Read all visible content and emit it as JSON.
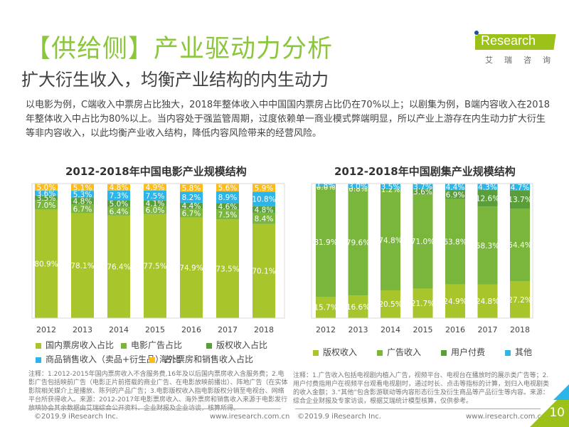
{
  "header": {
    "title": "【供给侧】产业驱动力分析",
    "subtitle": "扩大衍生收入，均衡产业结构的内生动力",
    "logo_text": "Research",
    "logo_cn": "艾瑞咨询"
  },
  "intro": "以电影为例，C端收入中票房占比独大，2018年整体收入中中国国内票房占比仍在70%以上；以剧集为例，B端内容收入在2018年整体收入中占比为80%以上。当内容处于强监管周期，过度依赖单一商业模式弊端明显，所以产业上游存在内生动力扩大衍生等非内容收入，以此均衡产业收入结构，降低内容风险带来的经营风险。",
  "colors": {
    "lime": "#a8c62c",
    "green": "#7ab53c",
    "darkgreen": "#5a9e3a",
    "blue": "#2bb5e8",
    "yellow": "#fbbc1c",
    "title_green": "#8cc63f"
  },
  "chart_data": [
    {
      "type": "bar",
      "stacked": true,
      "title": "2012-2018年中国电影产业规模结构",
      "categories": [
        "2012",
        "2013",
        "2014",
        "2015",
        "2016",
        "2017",
        "2018"
      ],
      "ylim": [
        0,
        100
      ],
      "unit": "%",
      "legend_position": "bottom",
      "series": [
        {
          "name": "国内票房收入占比",
          "color": "#a8c62c",
          "values": [
            80.9,
            78.1,
            76.4,
            77.5,
            74.9,
            73.5,
            70.1
          ]
        },
        {
          "name": "电影广告占比",
          "color": "#7ab53c",
          "values": [
            7.0,
            6.7,
            6.4,
            6.0,
            6.7,
            7.5,
            8.4
          ]
        },
        {
          "name": "版权收入占比",
          "color": "#5a9e3a",
          "values": [
            3.5,
            4.8,
            5.0,
            4.1,
            4.4,
            4.6,
            4.8
          ]
        },
        {
          "name": "商品销售收入（卖品+衍生品）占比",
          "color": "#2bb5e8",
          "values": [
            3.6,
            5.3,
            7.3,
            7.5,
            8.2,
            8.9,
            10.8
          ]
        },
        {
          "name": "海外票房和销售收入占比",
          "color": "#fbbc1c",
          "values": [
            5.0,
            5.1,
            4.8,
            4.9,
            5.8,
            5.6,
            5.9
          ]
        }
      ]
    },
    {
      "type": "bar",
      "stacked": true,
      "title": "2012-2018年中国剧集产业规模结构",
      "categories": [
        "2012",
        "2013",
        "2014",
        "2015",
        "2016",
        "2017",
        "2018"
      ],
      "ylim": [
        0,
        100
      ],
      "unit": "%",
      "legend_position": "bottom",
      "series": [
        {
          "name": "版权收入",
          "color": "#a8c62c",
          "values": [
            15.7,
            16.6,
            20.5,
            21.7,
            24.9,
            24.8,
            27.2
          ]
        },
        {
          "name": "广告收入",
          "color": "#7ab53c",
          "values": [
            81.9,
            79.6,
            74.8,
            71.0,
            63.8,
            58.3,
            54.4
          ]
        },
        {
          "name": "用户付费",
          "color": "#5a9e3a",
          "values": [
            0.6,
            0.8,
            1.2,
            3.6,
            6.9,
            12.6,
            13.7
          ]
        },
        {
          "name": "其他",
          "color": "#2bb5e8",
          "values": [
            1.8,
            3.0,
            3.5,
            3.7,
            4.4,
            4.3,
            4.7
          ]
        }
      ]
    }
  ],
  "notes": {
    "left": "注释：1.2012-2015年国内票房收入不含服务费,16年及以后国内票房收入含服务费；2.电影广告包括映前广告（电影正片前搭载的商业广告、在电影放映前播出）、阵地广告（在实体影院相关媒介上是播放、陈列的产品广告；3.电影版权收入指电影版权分销至电视台、网络平台所获得收入。来源：2012-2017年电影票房收入、海外票房和销售收入来源于电影发行放映协会其余数据由艾瑞综合公开资料、企业财报及企业访谈，核算所得。",
    "right": "注释：1.广告收入包括电视剧内植入广告，视频平台、电视台在播放时的展示类广告等；2.用户付费指用户在视频平台观看电视剧时，通过时长、点击等指标的计算，划归入电视剧类的收入金额；3.“其他”包含影游联动等内容形态衍生及衍生商品等产品衍生等内容。来源：综合企业财报及专家访谈，根据艾瑞统计模型核算，仅供参考。"
  },
  "footer": {
    "copyright_left": "©2019.9 iResearch Inc.",
    "url_left": "www.iresearch.com.cn",
    "copyright_right": "©2019.9 iResearch Inc.",
    "url_right": "www.iresearch.com.cn",
    "page_number": "10"
  }
}
